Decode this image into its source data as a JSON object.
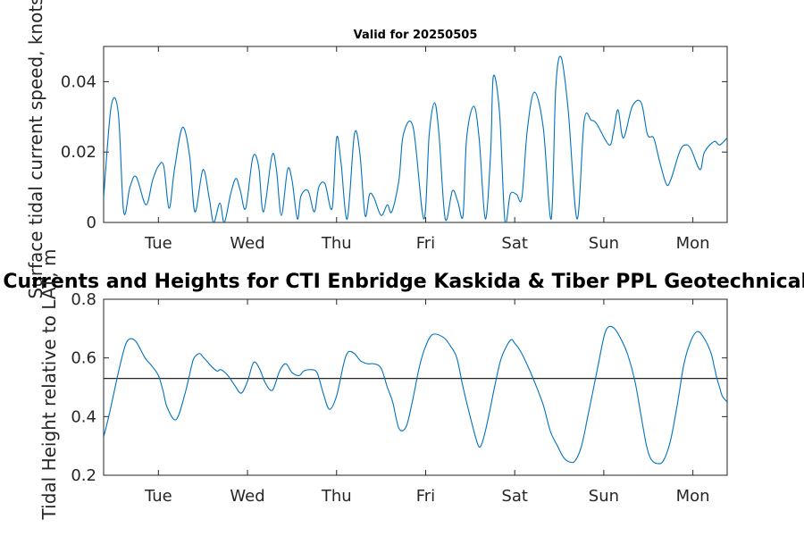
{
  "chart_data": [
    {
      "type": "line",
      "title": "Valid for 20250505",
      "xlabel": "",
      "ylabel": "Surface tidal current speed, knots",
      "x_ticks": [
        "Tue",
        "Wed",
        "Thu",
        "Fri",
        "Sat",
        "Sun",
        "Mon"
      ],
      "x_tick_positions": [
        1,
        2,
        3,
        4,
        5,
        6,
        7
      ],
      "xlim": [
        0.385,
        7.385
      ],
      "ylim": [
        0,
        0.05
      ],
      "y_ticks": [
        "0",
        "0.02",
        "0.04"
      ],
      "y_tick_values": [
        0,
        0.02,
        0.04
      ],
      "grid": false,
      "series": [
        {
          "name": "",
          "color": "#0072bd",
          "x": [
            0.385,
            0.47,
            0.55,
            0.61,
            0.68,
            0.75,
            0.86,
            0.935,
            1.0,
            1.06,
            1.12,
            1.18,
            1.27,
            1.35,
            1.41,
            1.5,
            1.57,
            1.62,
            1.69,
            1.74,
            1.81,
            1.87,
            1.92,
            1.98,
            2.06,
            2.125,
            2.18,
            2.275,
            2.325,
            2.38,
            2.45,
            2.5,
            2.56,
            2.6,
            2.68,
            2.75,
            2.8,
            2.87,
            2.95,
            3.0,
            3.05,
            3.12,
            3.2,
            3.26,
            3.32,
            3.37,
            3.42,
            3.5,
            3.57,
            3.62,
            3.7,
            3.75,
            3.86,
            3.98,
            4.04,
            4.1,
            4.15,
            4.22,
            4.3,
            4.36,
            4.42,
            4.46,
            4.54,
            4.6,
            4.67,
            4.73,
            4.76,
            4.83,
            4.89,
            4.95,
            5.02,
            5.08,
            5.14,
            5.22,
            5.32,
            5.41,
            5.46,
            5.52,
            5.6,
            5.7,
            5.78,
            5.86,
            5.92,
            6.06,
            6.11,
            6.16,
            6.22,
            6.32,
            6.42,
            6.49,
            6.56,
            6.62,
            6.7,
            6.75,
            6.85,
            6.91,
            6.975,
            7.08,
            7.13,
            7.24,
            7.3,
            7.385
          ],
          "y": [
            0.007,
            0.033,
            0.031,
            0.003,
            0.01,
            0.013,
            0.005,
            0.012,
            0.016,
            0.016,
            0.004,
            0.015,
            0.027,
            0.019,
            0.003,
            0.015,
            0.007,
            0.0,
            0.0055,
            0.0,
            0.008,
            0.0125,
            0.009,
            0.004,
            0.0185,
            0.016,
            0.003,
            0.019,
            0.015,
            0.002,
            0.015,
            0.012,
            0.001,
            0.0075,
            0.009,
            0.003,
            0.01,
            0.011,
            0.004,
            0.024,
            0.017,
            0.001,
            0.025,
            0.02,
            0.002,
            0.008,
            0.007,
            0.002,
            0.005,
            0.003,
            0.012,
            0.025,
            0.027,
            0.001,
            0.025,
            0.034,
            0.025,
            0.001,
            0.009,
            0.006,
            0.002,
            0.024,
            0.033,
            0.024,
            0.001,
            0.02,
            0.0415,
            0.031,
            0.0005,
            0.008,
            0.008,
            0.007,
            0.026,
            0.037,
            0.027,
            0.001,
            0.038,
            0.047,
            0.032,
            0.001,
            0.029,
            0.029,
            0.028,
            0.022,
            0.026,
            0.032,
            0.024,
            0.033,
            0.034,
            0.025,
            0.024,
            0.018,
            0.011,
            0.012,
            0.02,
            0.022,
            0.021,
            0.015,
            0.02,
            0.023,
            0.022,
            0.024
          ]
        }
      ]
    },
    {
      "type": "line",
      "title": "Currents and Heights for CTI Enbridge  Kaskida & Tiber PPL Geotechnical a",
      "xlabel": "",
      "ylabel": "Tidal Height relative to LAT, m",
      "x_ticks": [
        "Tue",
        "Wed",
        "Thu",
        "Fri",
        "Sat",
        "Sun",
        "Mon"
      ],
      "x_tick_positions": [
        1,
        2,
        3,
        4,
        5,
        6,
        7
      ],
      "xlim": [
        0.385,
        7.385
      ],
      "ylim": [
        0.2,
        0.8
      ],
      "y_ticks": [
        "0.2",
        "0.4",
        "0.6",
        "0.8"
      ],
      "y_tick_values": [
        0.2,
        0.4,
        0.6,
        0.8
      ],
      "grid": false,
      "reference_line": 0.53,
      "series": [
        {
          "name": "",
          "color": "#0072bd",
          "x": [
            0.385,
            0.45,
            0.55,
            0.625,
            0.68,
            0.75,
            0.85,
            0.92,
            1.0,
            1.05,
            1.1,
            1.2,
            1.3,
            1.37,
            1.4,
            1.46,
            1.51,
            1.6,
            1.66,
            1.7,
            1.78,
            1.86,
            1.93,
            2.0,
            2.07,
            2.14,
            2.2,
            2.28,
            2.36,
            2.43,
            2.5,
            2.58,
            2.63,
            2.7,
            2.78,
            2.85,
            2.92,
            3.0,
            3.08,
            3.13,
            3.2,
            3.27,
            3.35,
            3.42,
            3.5,
            3.57,
            3.63,
            3.7,
            3.78,
            3.85,
            3.93,
            4.0,
            4.08,
            4.2,
            4.28,
            4.35,
            4.42,
            4.5,
            4.58,
            4.62,
            4.67,
            4.72,
            4.78,
            4.85,
            4.95,
            5.0,
            5.07,
            5.15,
            5.22,
            5.32,
            5.4,
            5.48,
            5.55,
            5.62,
            5.68,
            5.75,
            5.82,
            5.92,
            6.0,
            6.05,
            6.12,
            6.2,
            6.27,
            6.35,
            6.42,
            6.48,
            6.53,
            6.6,
            6.67,
            6.75,
            6.83,
            6.9,
            6.98,
            7.05,
            7.12,
            7.2,
            7.24,
            7.27,
            7.3,
            7.33,
            7.385
          ],
          "y": [
            0.33,
            0.41,
            0.55,
            0.64,
            0.665,
            0.655,
            0.6,
            0.575,
            0.54,
            0.49,
            0.43,
            0.39,
            0.48,
            0.57,
            0.6,
            0.615,
            0.6,
            0.57,
            0.555,
            0.56,
            0.54,
            0.505,
            0.48,
            0.52,
            0.585,
            0.56,
            0.515,
            0.49,
            0.555,
            0.58,
            0.55,
            0.54,
            0.555,
            0.56,
            0.55,
            0.48,
            0.425,
            0.47,
            0.58,
            0.62,
            0.615,
            0.59,
            0.58,
            0.58,
            0.565,
            0.5,
            0.45,
            0.36,
            0.365,
            0.45,
            0.57,
            0.64,
            0.68,
            0.67,
            0.64,
            0.6,
            0.5,
            0.4,
            0.31,
            0.3,
            0.35,
            0.42,
            0.51,
            0.6,
            0.66,
            0.65,
            0.62,
            0.57,
            0.52,
            0.44,
            0.35,
            0.3,
            0.26,
            0.245,
            0.25,
            0.3,
            0.4,
            0.55,
            0.67,
            0.705,
            0.7,
            0.66,
            0.61,
            0.52,
            0.4,
            0.3,
            0.255,
            0.24,
            0.25,
            0.32,
            0.45,
            0.58,
            0.66,
            0.69,
            0.67,
            0.62,
            0.57,
            0.53,
            0.5,
            0.47,
            0.45
          ]
        }
      ]
    }
  ]
}
